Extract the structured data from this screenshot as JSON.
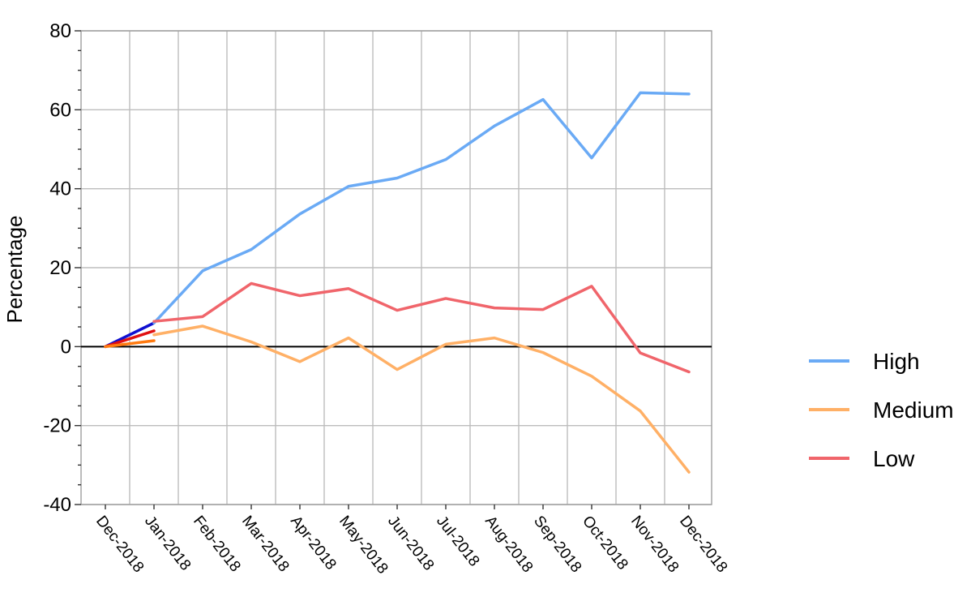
{
  "chart_data": {
    "type": "line",
    "title": "",
    "xlabel": "",
    "ylabel": "Percentage",
    "ylim": [
      -40,
      80
    ],
    "yticks": [
      -40,
      -20,
      0,
      20,
      40,
      60,
      80
    ],
    "grid": true,
    "legend_position": "right",
    "categories": [
      "Dec-2018",
      "Jan-2018",
      "Feb-2018",
      "Mar-2018",
      "Apr-2018",
      "May-2018",
      "Jun-2018",
      "Jul-2018",
      "Aug-2018",
      "Sep-2018",
      "Oct-2018",
      "Nov-2018",
      "Dec-2018"
    ],
    "series": [
      {
        "name": "High",
        "color": "#6aaaf5",
        "values": [
          0,
          6,
          19.2,
          24.6,
          33.6,
          40.6,
          42.7,
          47.4,
          55.9,
          62.6,
          47.8,
          64.3,
          64.0
        ]
      },
      {
        "name": "Medium",
        "color": "#ffb066",
        "values": [
          0,
          3,
          5.2,
          1.2,
          -3.8,
          2.2,
          -5.8,
          0.6,
          2.2,
          -1.5,
          -7.5,
          -16.3,
          -31.8
        ]
      },
      {
        "name": "Low",
        "color": "#f0656b",
        "values": [
          0,
          6.4,
          7.6,
          16.0,
          12.9,
          14.7,
          9.2,
          12.2,
          9.8,
          9.4,
          15.3,
          -1.6,
          -6.4
        ]
      }
    ],
    "start_segments": [
      {
        "color": "#1010d0",
        "values": [
          0,
          6
        ]
      },
      {
        "color": "#e01010",
        "values": [
          0,
          4
        ]
      },
      {
        "color": "#ff7a10",
        "values": [
          0,
          1.5
        ]
      }
    ]
  }
}
